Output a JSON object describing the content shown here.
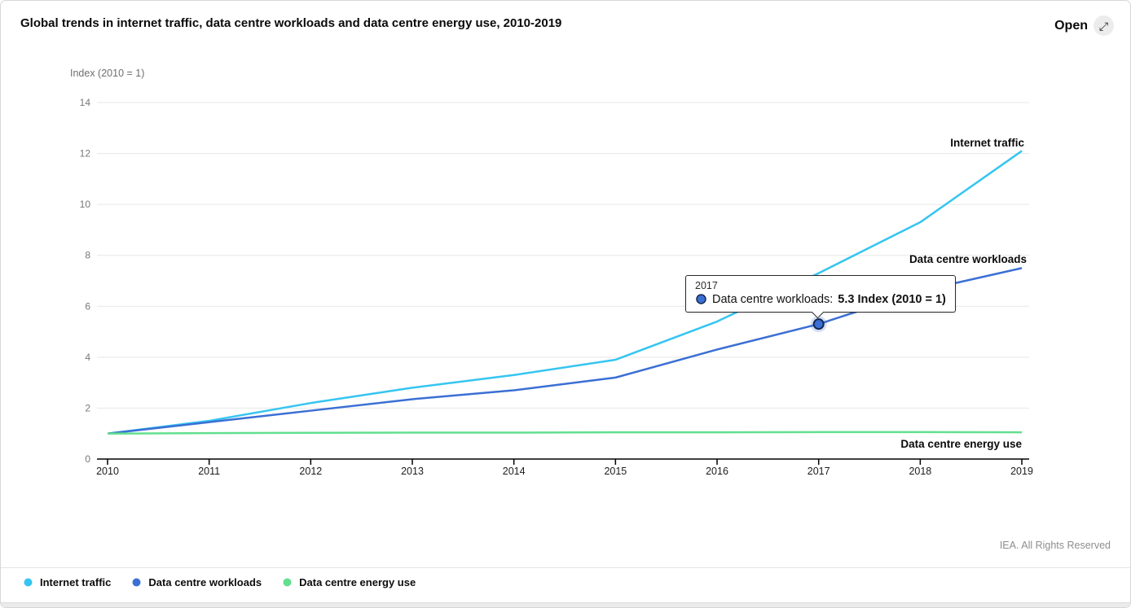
{
  "header": {
    "title": "Global trends in internet traffic, data centre workloads and data centre energy use, 2010-2019",
    "open_label": "Open",
    "open_icon": "⤢"
  },
  "chart_data": {
    "type": "line",
    "title": "Global trends in internet traffic, data centre workloads and data centre energy use, 2010-2019",
    "unit_label": "Index (2010 = 1)",
    "x": [
      2010,
      2011,
      2012,
      2013,
      2014,
      2015,
      2016,
      2017,
      2018,
      2019
    ],
    "series": [
      {
        "name": "Internet traffic",
        "color": "#36C5F1",
        "values": [
          1,
          1.5,
          2.2,
          2.8,
          3.3,
          3.9,
          5.4,
          7.3,
          9.3,
          12.1
        ]
      },
      {
        "name": "Data centre workloads",
        "color": "#3B6FD4",
        "values": [
          1,
          1.45,
          1.9,
          2.35,
          2.7,
          3.2,
          4.3,
          5.3,
          6.6,
          7.5
        ]
      },
      {
        "name": "Data centre energy use",
        "color": "#62DF8F",
        "values": [
          1,
          1.02,
          1.03,
          1.04,
          1.04,
          1.05,
          1.05,
          1.06,
          1.06,
          1.05
        ]
      }
    ],
    "yticks": [
      0,
      2,
      4,
      6,
      8,
      10,
      12,
      14
    ],
    "ylim": [
      0,
      14
    ],
    "grid": true,
    "legend_position": "bottom"
  },
  "tooltip": {
    "year": "2017",
    "series": "Data centre workloads",
    "label_prefix": "Data centre workloads: ",
    "value_text": "5.3 Index (2010 = 1)",
    "marker_color": "#3B6FD4",
    "marker_border": "#15294F",
    "point": {
      "x": 2017,
      "value": 5.3
    }
  },
  "footer": {
    "rights": "IEA. All Rights Reserved"
  }
}
